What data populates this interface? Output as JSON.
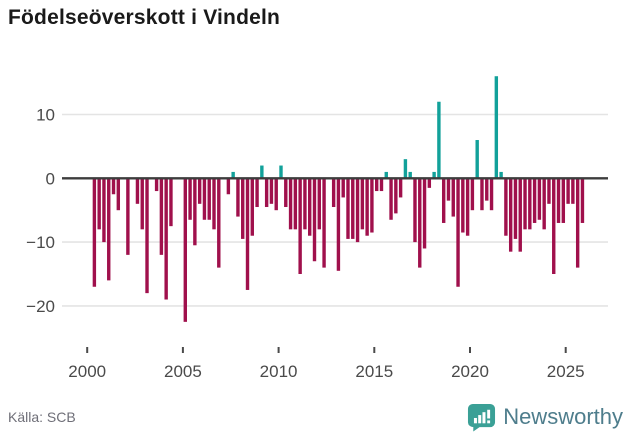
{
  "title": "Födelseöverskott i Vindeln",
  "source": "Källa: SCB",
  "brand": {
    "name": "Newsworthy",
    "icon": "newsworthy-speech-bubble-bar-chart-icon"
  },
  "colors": {
    "positive": "#12a19a",
    "negative": "#a0104c",
    "zero_line": "#3d3d3d",
    "grid": "#e4e4e4",
    "axis_text": "#4a4a4a",
    "title_text": "#1a1a1a",
    "source_text": "#6f6f78",
    "brand_text": "#4e7d8c",
    "brand_icon": "#3aa096"
  },
  "chart_data": {
    "type": "bar",
    "title": "Födelseöverskott i Vindeln",
    "frequency": "quarterly",
    "quarter_prefix": "K",
    "xlabel": "",
    "ylabel": "",
    "ylim": [
      -24,
      17
    ],
    "yticks": [
      10,
      0,
      -10,
      -20
    ],
    "y_tick_labels": [
      "10",
      "0",
      "−10",
      "−20"
    ],
    "xticks": [
      2000,
      2005,
      2010,
      2015,
      2020,
      2025
    ],
    "grid": true,
    "legend": "none",
    "series_by_year": {
      "2000": [
        0,
        -17,
        -8,
        -10
      ],
      "2001": [
        -16,
        -2.5,
        -5,
        0
      ],
      "2002": [
        -12,
        0,
        -4,
        -8
      ],
      "2003": [
        -18,
        0,
        -2,
        -12
      ],
      "2004": [
        -19,
        -7.5,
        0,
        0
      ],
      "2005": [
        -22.5,
        -6.5,
        -10.5,
        -4
      ],
      "2006": [
        -6.5,
        -6.5,
        -8,
        -14
      ],
      "2007": [
        0,
        -2.5,
        1,
        -6
      ],
      "2008": [
        -9.5,
        -17.5,
        -9,
        -4.5
      ],
      "2009": [
        2,
        -4.5,
        -4,
        -5
      ],
      "2010": [
        2,
        -4.5,
        -8,
        -8
      ],
      "2011": [
        -15,
        -8,
        -9,
        -13
      ],
      "2012": [
        -8,
        -14,
        0,
        -4.5
      ],
      "2013": [
        -14.5,
        -3,
        -9.5,
        -9.5
      ],
      "2014": [
        -10,
        -8,
        -9,
        -8.5
      ],
      "2015": [
        -2,
        -2,
        1,
        -6.5
      ],
      "2016": [
        -5.5,
        -3,
        3,
        1
      ],
      "2017": [
        -10,
        -14,
        -11,
        -1.5
      ],
      "2018": [
        1,
        12,
        -7,
        -3.5
      ],
      "2019": [
        -6,
        -17,
        -8.5,
        -9
      ],
      "2020": [
        -5,
        6,
        -5,
        -3.5
      ],
      "2021": [
        -5,
        16,
        1,
        -9
      ],
      "2022": [
        -11.5,
        -9.5,
        -11.5,
        -8
      ],
      "2023": [
        -8,
        -7,
        -6.5,
        -8
      ],
      "2024": [
        -4,
        -15,
        -7,
        -7
      ],
      "2025": [
        -4,
        -4,
        -14,
        -7
      ]
    }
  }
}
